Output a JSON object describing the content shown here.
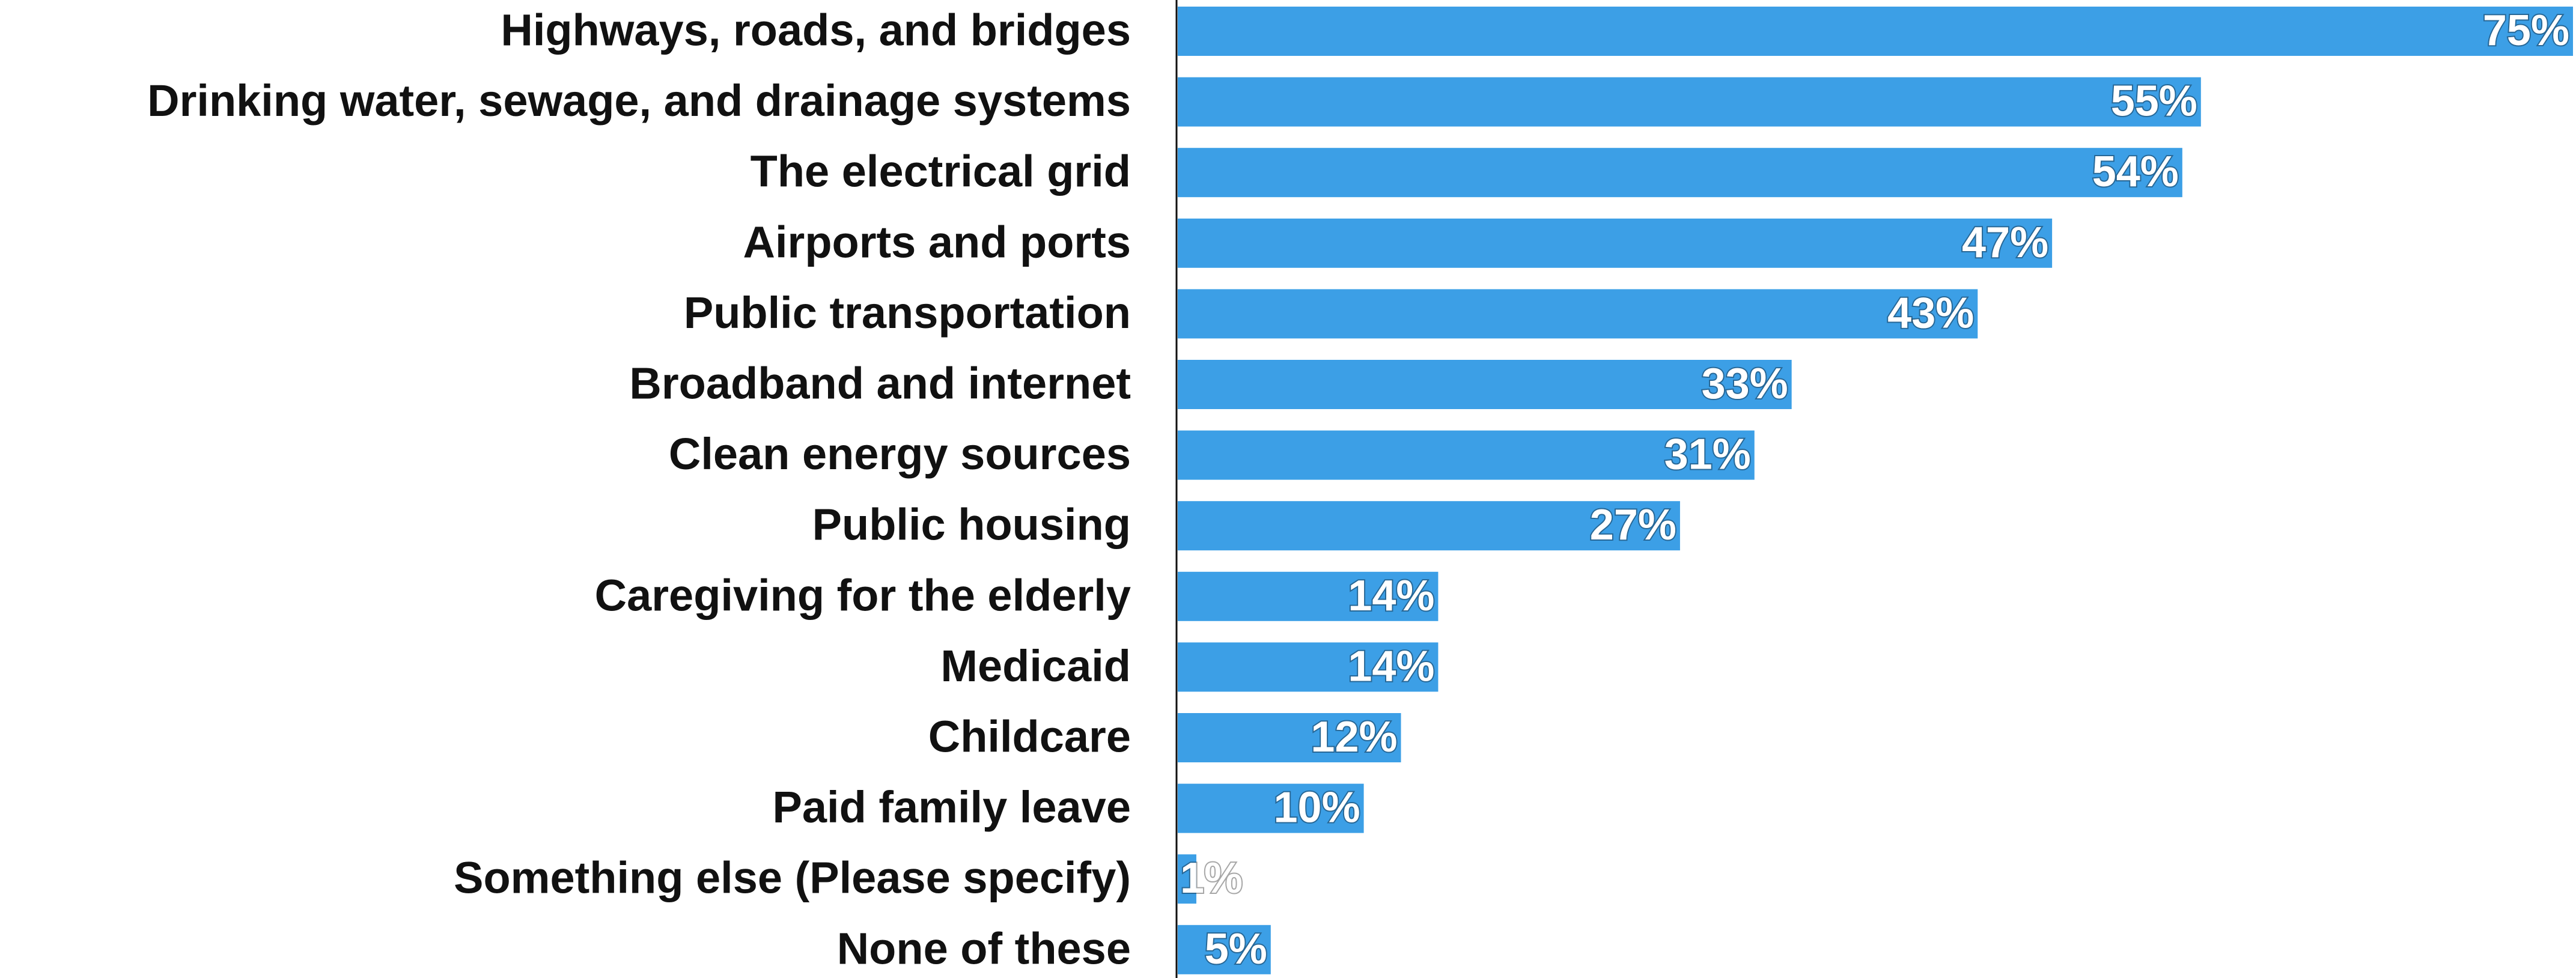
{
  "chart_data": {
    "type": "bar",
    "orientation": "horizontal",
    "color": "#3c9fe6",
    "categories": [
      "Highways, roads, and bridges",
      "Drinking water, sewage, and drainage systems",
      "The electrical grid",
      "Airports and ports",
      "Public transportation",
      "Broadband and internet",
      "Clean energy sources",
      "Public housing",
      "Caregiving for the elderly",
      "Medicaid",
      "Childcare",
      "Paid family leave",
      "Something else (Please specify)",
      "None of these"
    ],
    "values": [
      75,
      55,
      54,
      47,
      43,
      33,
      31,
      27,
      14,
      14,
      12,
      10,
      1,
      5
    ],
    "value_labels": [
      "75%",
      "55%",
      "54%",
      "47%",
      "43%",
      "33%",
      "31%",
      "27%",
      "14%",
      "14%",
      "12%",
      "10%",
      "1%",
      "5%"
    ]
  }
}
